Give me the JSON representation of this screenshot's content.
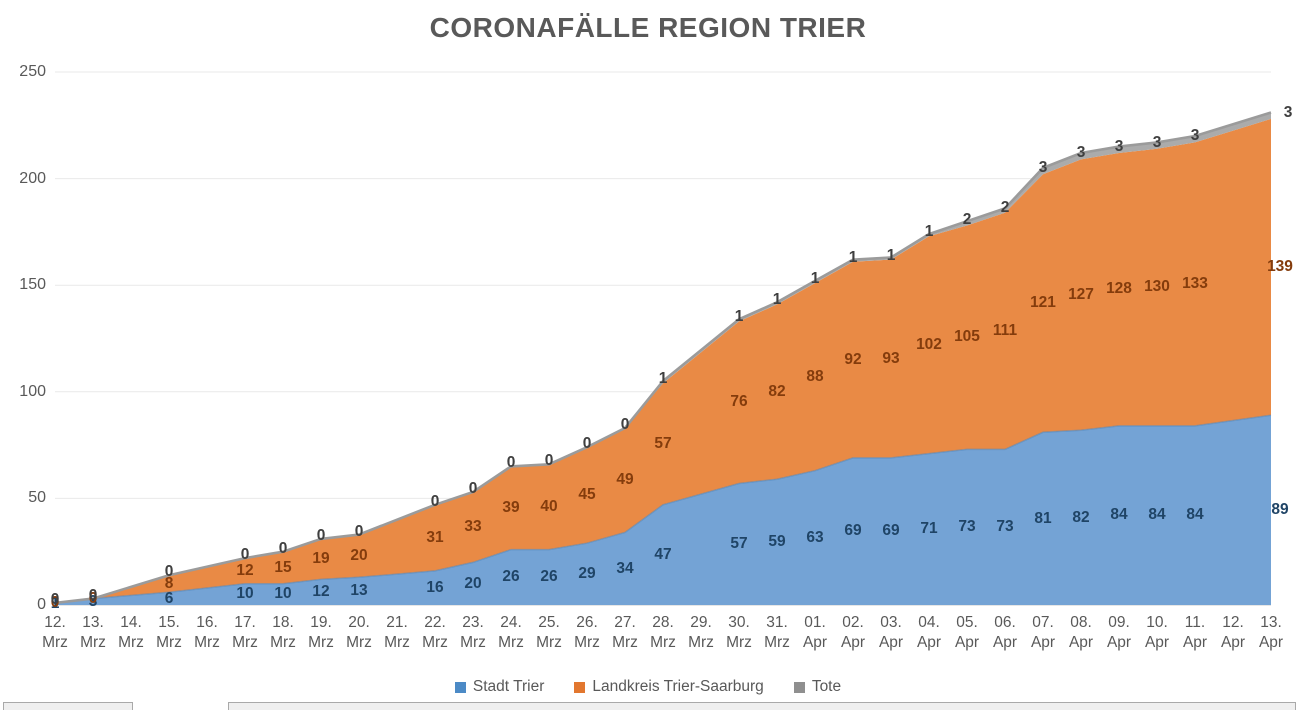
{
  "title": "CORONAFÄLLE REGION TRIER",
  "chart_data": {
    "type": "area",
    "stacked": true,
    "title": "CORONAFÄLLE REGION TRIER",
    "xlabel": "",
    "ylabel": "",
    "ylim": [
      0,
      250
    ],
    "yticks": [
      0,
      50,
      100,
      150,
      200,
      250
    ],
    "grid": true,
    "legend_position": "bottom",
    "grid_color": "#e9e9e9",
    "axis_line_color": "#d6d6d6",
    "axis_text_color": "#595959",
    "categories": [
      {
        "day": "12.",
        "month": "Mrz"
      },
      {
        "day": "13.",
        "month": "Mrz"
      },
      {
        "day": "14.",
        "month": "Mrz"
      },
      {
        "day": "15.",
        "month": "Mrz"
      },
      {
        "day": "16.",
        "month": "Mrz"
      },
      {
        "day": "17.",
        "month": "Mrz"
      },
      {
        "day": "18.",
        "month": "Mrz"
      },
      {
        "day": "19.",
        "month": "Mrz"
      },
      {
        "day": "20.",
        "month": "Mrz"
      },
      {
        "day": "21.",
        "month": "Mrz"
      },
      {
        "day": "22.",
        "month": "Mrz"
      },
      {
        "day": "23.",
        "month": "Mrz"
      },
      {
        "day": "24.",
        "month": "Mrz"
      },
      {
        "day": "25.",
        "month": "Mrz"
      },
      {
        "day": "26.",
        "month": "Mrz"
      },
      {
        "day": "27.",
        "month": "Mrz"
      },
      {
        "day": "28.",
        "month": "Mrz"
      },
      {
        "day": "29.",
        "month": "Mrz"
      },
      {
        "day": "30.",
        "month": "Mrz"
      },
      {
        "day": "31.",
        "month": "Mrz"
      },
      {
        "day": "01.",
        "month": "Apr"
      },
      {
        "day": "02.",
        "month": "Apr"
      },
      {
        "day": "03.",
        "month": "Apr"
      },
      {
        "day": "04.",
        "month": "Apr"
      },
      {
        "day": "05.",
        "month": "Apr"
      },
      {
        "day": "06.",
        "month": "Apr"
      },
      {
        "day": "07.",
        "month": "Apr"
      },
      {
        "day": "08.",
        "month": "Apr"
      },
      {
        "day": "09.",
        "month": "Apr"
      },
      {
        "day": "10.",
        "month": "Apr"
      },
      {
        "day": "11.",
        "month": "Apr"
      },
      {
        "day": "12.",
        "month": "Apr"
      },
      {
        "day": "13.",
        "month": "Apr"
      }
    ],
    "series": [
      {
        "name": "Stadt Trier",
        "fill_color": "#74a3d5",
        "edge_color": "#4d86c0",
        "legend_color": "#4c8ac6",
        "label_color": "#1f4466",
        "values": [
          1,
          3,
          null,
          6,
          null,
          10,
          10,
          12,
          13,
          null,
          16,
          20,
          26,
          26,
          29,
          34,
          47,
          null,
          57,
          59,
          63,
          69,
          69,
          71,
          73,
          73,
          81,
          82,
          84,
          84,
          84,
          null,
          89
        ]
      },
      {
        "name": "Landkreis Trier-Saarburg",
        "fill_color": "#e98a45",
        "edge_color": "#e07b35",
        "legend_color": "#e2772f",
        "label_color": "#843c0c",
        "values": [
          0,
          0,
          null,
          8,
          null,
          12,
          15,
          19,
          20,
          null,
          31,
          33,
          39,
          40,
          45,
          49,
          57,
          null,
          76,
          82,
          88,
          92,
          93,
          102,
          105,
          111,
          121,
          127,
          128,
          130,
          133,
          null,
          139
        ]
      },
      {
        "name": "Tote",
        "fill_color": "#ababab",
        "edge_color": "#9b9b9b",
        "legend_color": "#8f8f8f",
        "label_color": "#3f3f3f",
        "values": [
          0,
          0,
          null,
          0,
          null,
          0,
          0,
          0,
          0,
          null,
          0,
          0,
          0,
          0,
          0,
          0,
          1,
          null,
          1,
          1,
          1,
          1,
          1,
          1,
          2,
          2,
          3,
          3,
          3,
          3,
          3,
          null,
          3
        ]
      }
    ]
  }
}
